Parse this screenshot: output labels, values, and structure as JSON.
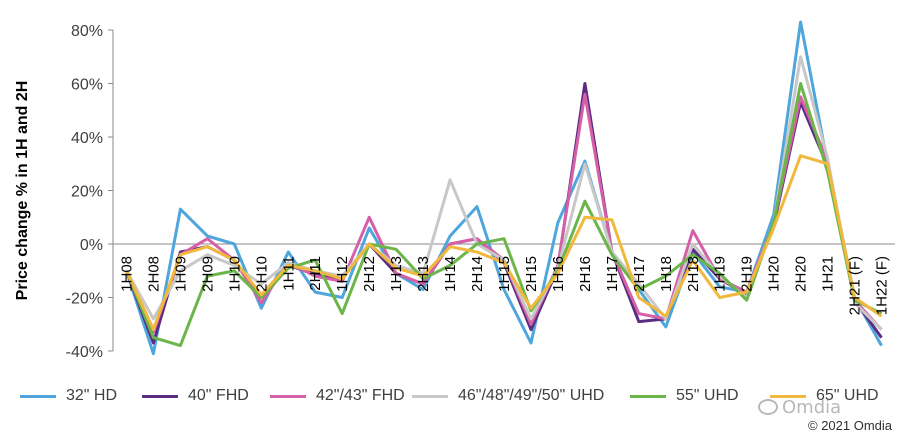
{
  "chart_data": {
    "type": "line",
    "ylabel": "Price change % in 1H and 2H",
    "ylim": [
      -40,
      80
    ],
    "yticks": [
      {
        "value": 80,
        "label": "80%"
      },
      {
        "value": 60,
        "label": "60%"
      },
      {
        "value": 40,
        "label": "40%"
      },
      {
        "value": 20,
        "label": "20%"
      },
      {
        "value": 0,
        "label": "0%"
      },
      {
        "value": -20,
        "label": "-20%"
      },
      {
        "value": -40,
        "label": "-40%"
      }
    ],
    "categories": [
      "1H08",
      "2H08",
      "1H09",
      "2H09",
      "1H10",
      "2H10",
      "1H11",
      "2H11",
      "1H12",
      "2H12",
      "1H13",
      "2H13",
      "1H14",
      "2H14",
      "1H15",
      "2H15",
      "1H16",
      "2H16",
      "1H17",
      "2H17",
      "1H18",
      "2H18",
      "1H19",
      "2H19",
      "1H20",
      "2H20",
      "1H21",
      "2H21 (F)",
      "1H22 (F)"
    ],
    "series": [
      {
        "name": "32\" HD",
        "color": "#4ea6dc",
        "values": [
          -10,
          -41,
          13,
          3,
          0,
          -24,
          -3,
          -18,
          -20,
          6,
          -11,
          -17,
          3,
          14,
          -17,
          -37,
          8,
          31,
          -3,
          -17,
          -31,
          -3,
          -16,
          -18,
          11,
          83,
          30,
          -20,
          -38
        ]
      },
      {
        "name": "40\" FHD",
        "color": "#5b2c83",
        "values": [
          -10,
          -37,
          -3,
          -1,
          -6,
          -20,
          -8,
          -11,
          -13,
          0,
          -11,
          -15,
          0,
          2,
          -7,
          -32,
          -9,
          60,
          -3,
          -29,
          -28,
          -2,
          -13,
          -19,
          7,
          53,
          29,
          -21,
          -35
        ]
      },
      {
        "name": "42\"/43\" FHD",
        "color": "#d660a8",
        "values": [
          -10,
          -33,
          -4,
          2,
          -6,
          -22,
          -7,
          -12,
          -14,
          10,
          -11,
          -15,
          0,
          2,
          -6,
          -30,
          -8,
          56,
          -3,
          -26,
          -28,
          5,
          -13,
          -18,
          8,
          55,
          31,
          -21,
          -32
        ]
      },
      {
        "name": "46\"/48\"/49\"/50\" UHD",
        "color": "#c8c8c8",
        "values": [
          -10,
          -28,
          -10,
          -4,
          -8,
          -15,
          -7,
          -10,
          -12,
          0,
          -8,
          -11,
          24,
          0,
          -6,
          -28,
          -9,
          30,
          -3,
          -15,
          -28,
          0,
          -12,
          -20,
          8,
          70,
          32,
          -22,
          -32
        ]
      },
      {
        "name": "55\" UHD",
        "color": "#6cb54a",
        "values": [
          -10,
          -35,
          -38,
          -12,
          -10,
          -20,
          -9,
          -6,
          -26,
          0,
          -2,
          -13,
          -8,
          0,
          2,
          -25,
          -10,
          16,
          -4,
          -17,
          -12,
          -4,
          -11,
          -21,
          8,
          60,
          27,
          -21,
          -26
        ]
      },
      {
        "name": "65\" UHD",
        "color": "#f0b83c",
        "values": [
          -10,
          -32,
          -4,
          -1,
          -6,
          -19,
          -8,
          -10,
          -13,
          0,
          -9,
          -12,
          -1,
          -3,
          -7,
          -24,
          -11,
          10,
          9,
          -20,
          -27,
          -6,
          -20,
          -18,
          6,
          33,
          30,
          -20,
          -27
        ]
      }
    ],
    "grid": false,
    "legend_position": "bottom"
  },
  "watermark": "Omdia",
  "copyright": "© 2021 Omdia"
}
